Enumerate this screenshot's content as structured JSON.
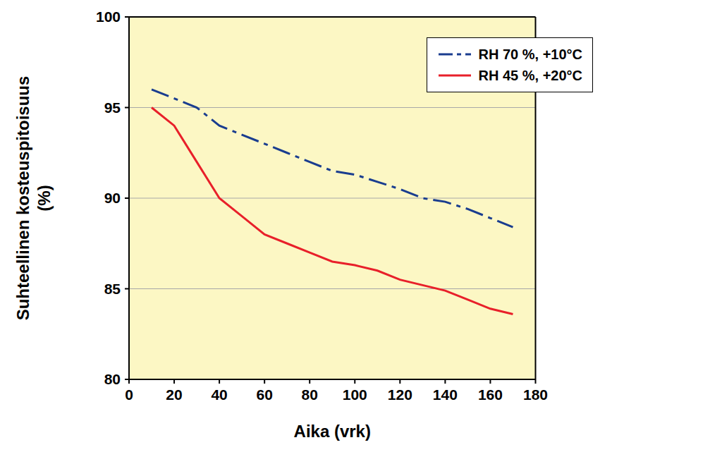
{
  "chart_data": {
    "type": "line",
    "x_label": "Aika (vrk)",
    "y_label": "Suhteellinen kosteuspitoisuus (%)",
    "x": [
      10,
      20,
      30,
      40,
      50,
      60,
      70,
      80,
      90,
      100,
      110,
      120,
      130,
      140,
      150,
      160,
      170
    ],
    "series": [
      {
        "name": "RH 70 %, +10°C",
        "color": "#1a3d8f",
        "line_style": "dashdot",
        "values": [
          96,
          95.5,
          95,
          94,
          93.5,
          93,
          92.5,
          92,
          91.5,
          91.3,
          90.9,
          90.5,
          90,
          89.8,
          89.4,
          88.9,
          88.4
        ]
      },
      {
        "name": "RH 45 %, +20°C",
        "color": "#e8202a",
        "line_style": "solid",
        "values": [
          95,
          94,
          92,
          90,
          89,
          88,
          87.5,
          87,
          86.5,
          86.3,
          86,
          85.5,
          85.2,
          84.9,
          84.4,
          83.9,
          83.6
        ]
      }
    ],
    "xlim": [
      0,
      180
    ],
    "xticks": [
      0,
      20,
      40,
      60,
      80,
      100,
      120,
      140,
      160,
      180
    ],
    "ylim": [
      80,
      100
    ],
    "yticks": [
      80,
      85,
      90,
      95,
      100
    ],
    "grid": true,
    "legend": "upper right"
  }
}
